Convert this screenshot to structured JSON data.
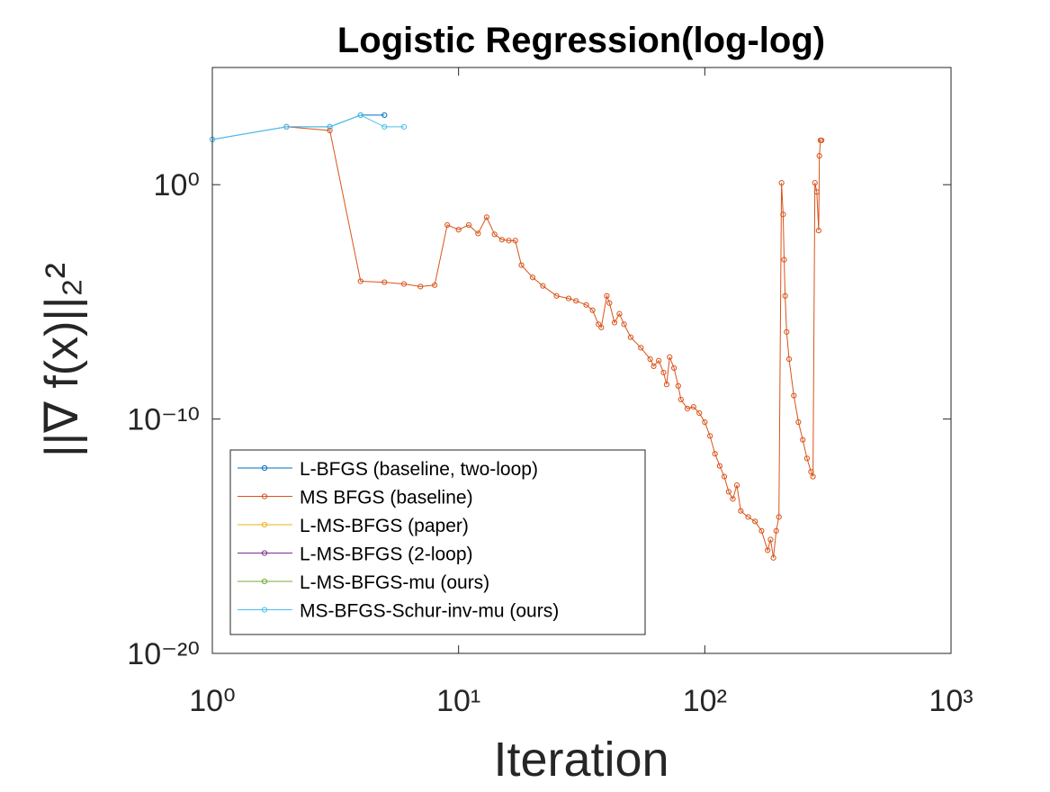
{
  "chart_data": {
    "type": "line",
    "title": "Logistic Regression(log-log)",
    "x_label": "Iteration",
    "y_label": "||∇ f(x)||₂²",
    "xscale": "log",
    "yscale": "log",
    "xlim": [
      1,
      1000
    ],
    "ylim": [
      1e-20,
      100000
    ],
    "xticks": [
      {
        "value": 1,
        "label": "10⁰"
      },
      {
        "value": 10,
        "label": "10¹"
      },
      {
        "value": 100,
        "label": "10²"
      },
      {
        "value": 1000,
        "label": "10³"
      }
    ],
    "yticks": [
      {
        "value": 1e-20,
        "label": "10⁻²⁰"
      },
      {
        "value": 1e-10,
        "label": "10⁻¹⁰"
      },
      {
        "value": 1,
        "label": "10⁰"
      }
    ],
    "legend": "bottom-left",
    "series": [
      {
        "name": "L-BFGS (baseline, two-loop)",
        "color": "#0072BD",
        "x": [
          1,
          2,
          3,
          4,
          5
        ],
        "values": [
          85,
          295,
          295,
          930,
          930
        ]
      },
      {
        "name": "MS BFGS (baseline)",
        "color": "#D95319",
        "x": [
          2,
          3,
          4,
          5,
          6,
          7,
          8,
          9,
          10,
          11,
          12,
          13,
          14,
          15,
          16,
          17,
          18,
          20,
          22,
          25,
          28,
          30,
          33,
          35,
          37,
          38,
          40,
          41,
          43,
          45,
          47,
          50,
          55,
          60,
          62,
          65,
          68,
          70,
          72,
          75,
          78,
          80,
          85,
          90,
          95,
          100,
          105,
          110,
          115,
          120,
          125,
          130,
          135,
          140,
          150,
          160,
          170,
          180,
          185,
          190,
          195,
          200,
          205,
          208,
          210,
          212,
          215,
          220,
          230,
          240,
          250,
          260,
          270,
          275,
          280,
          285,
          290,
          292,
          295,
          298
        ],
        "values": [
          295,
          205,
          7.6e-05,
          6.9e-05,
          5.8e-05,
          4.5e-05,
          5.2e-05,
          0.019,
          0.012,
          0.019,
          0.0083,
          0.041,
          0.0076,
          0.0045,
          0.0041,
          0.0041,
          0.00037,
          0.00011,
          4.8e-05,
          1.8e-05,
          1.4e-05,
          1.1e-05,
          7.4e-06,
          4.4e-06,
          1.1e-06,
          8.1e-07,
          1.8e-05,
          8.9e-06,
          1.3e-06,
          3.1e-06,
          1.1e-06,
          3.1e-07,
          1.1e-07,
          3.6e-08,
          1.8e-08,
          3.1e-08,
          9.6e-09,
          3e-09,
          4.4e-08,
          1.5e-08,
          2.6e-09,
          6.8e-10,
          2.8e-10,
          3.3e-10,
          1.8e-10,
          7.4e-11,
          1.9e-11,
          3.3e-12,
          1e-12,
          3.5e-13,
          7.9e-14,
          3.9e-14,
          1.5e-13,
          1.2e-14,
          6.6e-15,
          4.3e-15,
          1.7e-15,
          2.5e-16,
          7.2e-16,
          1.2e-16,
          1.7e-15,
          6.6e-15,
          1.2,
          0.054,
          0.00063,
          1.8e-05,
          5.2e-07,
          3.6e-08,
          1e-09,
          7.4e-11,
          1.3e-11,
          2.1e-12,
          5.6e-13,
          3.5e-13,
          1.2,
          0.49,
          0.011,
          17,
          78,
          78
        ]
      },
      {
        "name": "L-MS-BFGS (paper)",
        "color": "#EDB120",
        "x": [],
        "values": []
      },
      {
        "name": "L-MS-BFGS (2-loop)",
        "color": "#7E2F8E",
        "x": [],
        "values": []
      },
      {
        "name": "L-MS-BFGS-mu (ours)",
        "color": "#77AC30",
        "x": [],
        "values": []
      },
      {
        "name": "MS-BFGS-Schur-inv-mu (ours)",
        "color": "#4DBEEE",
        "x": [
          1,
          2,
          3,
          4,
          5,
          6
        ],
        "values": [
          85,
          295,
          295,
          930,
          295,
          295
        ]
      }
    ]
  }
}
